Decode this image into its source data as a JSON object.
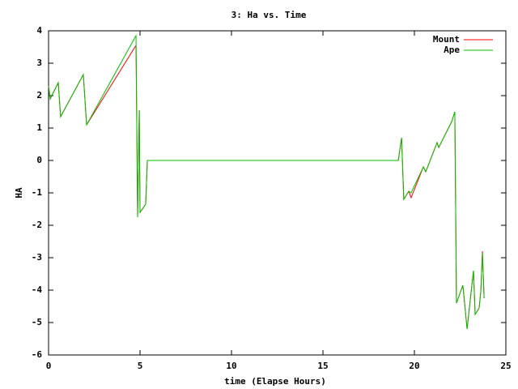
{
  "chart_data": {
    "type": "line",
    "title": "3: Ha vs. Time",
    "x_label": "time (Elapse Hours)",
    "y_label": "HA",
    "x": [
      0,
      0.09,
      0.53,
      0.66,
      1.9,
      2.08,
      4.78,
      4.87,
      4.96,
      5.0,
      5.31,
      5.4,
      19.12,
      19.3,
      19.42,
      19.69,
      19.82,
      20.49,
      20.62,
      21.24,
      21.33,
      22.04,
      22.21,
      22.3,
      22.65,
      22.88,
      23.23,
      23.32,
      23.54,
      23.63,
      23.72,
      23.81
    ],
    "series": [
      {
        "name": "Mount",
        "color": "#ff0000",
        "values": [
          2.3,
          1.9,
          2.4,
          1.35,
          2.65,
          1.1,
          3.55,
          -1.7,
          1.55,
          -1.6,
          -1.35,
          0,
          0,
          0.7,
          -1.2,
          -0.95,
          -1.15,
          -0.2,
          -0.35,
          0.55,
          0.4,
          1.2,
          1.5,
          -4.4,
          -3.85,
          -5.2,
          -3.4,
          -4.75,
          -4.55,
          -4.05,
          -2.8,
          -4.25
        ]
      },
      {
        "name": "Ape",
        "color": "#00c000",
        "values": [
          2.3,
          1.9,
          2.4,
          1.35,
          2.65,
          1.1,
          3.85,
          -1.75,
          1.55,
          -1.6,
          -1.35,
          0,
          0,
          0.7,
          -1.2,
          -0.95,
          -1.0,
          -0.2,
          -0.35,
          0.55,
          0.4,
          1.2,
          1.5,
          -4.4,
          -3.85,
          -5.2,
          -3.4,
          -4.75,
          -4.55,
          -4.05,
          -2.85,
          -4.25
        ]
      }
    ],
    "xlim": [
      0,
      25
    ],
    "xticks": [
      0,
      5,
      10,
      15,
      20,
      25
    ],
    "ylim": [
      -6,
      4
    ],
    "yticks": [
      -6,
      -5,
      -4,
      -3,
      -2,
      -1,
      0,
      1,
      2,
      3,
      4
    ],
    "legend": "top-right"
  }
}
